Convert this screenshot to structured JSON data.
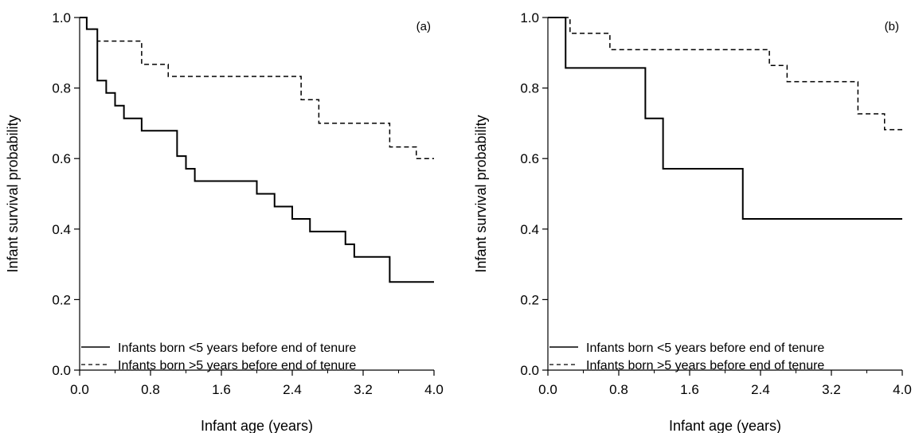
{
  "chart_data": [
    {
      "type": "line",
      "panel_label": "(a)",
      "xlabel": "Infant age (years)",
      "ylabel": "Infant survival probability",
      "xlim": [
        0,
        4.0
      ],
      "ylim": [
        0,
        1.0
      ],
      "x_ticks": [
        0.0,
        0.8,
        1.6,
        2.4,
        3.2,
        4.0
      ],
      "x_tick_labels": [
        "0.0",
        "0.8",
        "1.6",
        "2.4",
        "3.2",
        "4.0"
      ],
      "x_minor_ticks": [
        0.4,
        1.2,
        2.0,
        2.8,
        3.6
      ],
      "y_ticks": [
        0.0,
        0.2,
        0.4,
        0.6,
        0.8,
        1.0
      ],
      "y_tick_labels": [
        "0.0",
        "0.2",
        "0.4",
        "0.6",
        "0.8",
        "1.0"
      ],
      "grid": false,
      "legend_position": "bottom-left",
      "series": [
        {
          "name": "Infants born <5 years before end of tenure",
          "line_style": "solid",
          "step": true,
          "x": [
            0,
            0.08,
            0.2,
            0.3,
            0.4,
            0.5,
            0.7,
            1.1,
            1.2,
            1.3,
            2.0,
            2.2,
            2.4,
            2.6,
            3.0,
            3.1,
            3.5,
            4.0
          ],
          "y": [
            1.0,
            0.967,
            0.821,
            0.786,
            0.75,
            0.714,
            0.679,
            0.607,
            0.571,
            0.536,
            0.5,
            0.464,
            0.429,
            0.393,
            0.357,
            0.321,
            0.25,
            0.25
          ]
        },
        {
          "name": "Infants born >5 years before end of tenure",
          "line_style": "dashed",
          "step": true,
          "x": [
            0,
            0.08,
            0.2,
            0.7,
            1.0,
            2.5,
            2.7,
            3.5,
            3.8,
            4.0
          ],
          "y": [
            1.0,
            0.967,
            0.933,
            0.867,
            0.833,
            0.767,
            0.7,
            0.633,
            0.6,
            0.6
          ]
        }
      ]
    },
    {
      "type": "line",
      "panel_label": "(b)",
      "xlabel": "Infant age (years)",
      "ylabel": "Infant survival probability",
      "xlim": [
        0,
        4.0
      ],
      "ylim": [
        0,
        1.0
      ],
      "x_ticks": [
        0.0,
        0.8,
        1.6,
        2.4,
        3.2,
        4.0
      ],
      "x_tick_labels": [
        "0.0",
        "0.8",
        "1.6",
        "2.4",
        "3.2",
        "4.0"
      ],
      "x_minor_ticks": [
        0.4,
        1.2,
        2.0,
        2.8,
        3.6
      ],
      "y_ticks": [
        0.0,
        0.2,
        0.4,
        0.6,
        0.8,
        1.0
      ],
      "y_tick_labels": [
        "0.0",
        "0.2",
        "0.4",
        "0.6",
        "0.8",
        "1.0"
      ],
      "grid": false,
      "legend_position": "bottom-left",
      "series": [
        {
          "name": "Infants born <5 years before end of tenure",
          "line_style": "solid",
          "step": true,
          "x": [
            0,
            0.2,
            1.1,
            1.3,
            2.2,
            4.0
          ],
          "y": [
            1.0,
            0.857,
            0.714,
            0.571,
            0.429,
            0.429
          ]
        },
        {
          "name": "Infants born >5 years before end of tenure",
          "line_style": "dashed",
          "step": true,
          "x": [
            0,
            0.25,
            0.7,
            2.5,
            2.7,
            3.5,
            3.8,
            4.0
          ],
          "y": [
            1.0,
            0.955,
            0.909,
            0.864,
            0.818,
            0.727,
            0.682,
            0.682
          ]
        }
      ]
    }
  ]
}
